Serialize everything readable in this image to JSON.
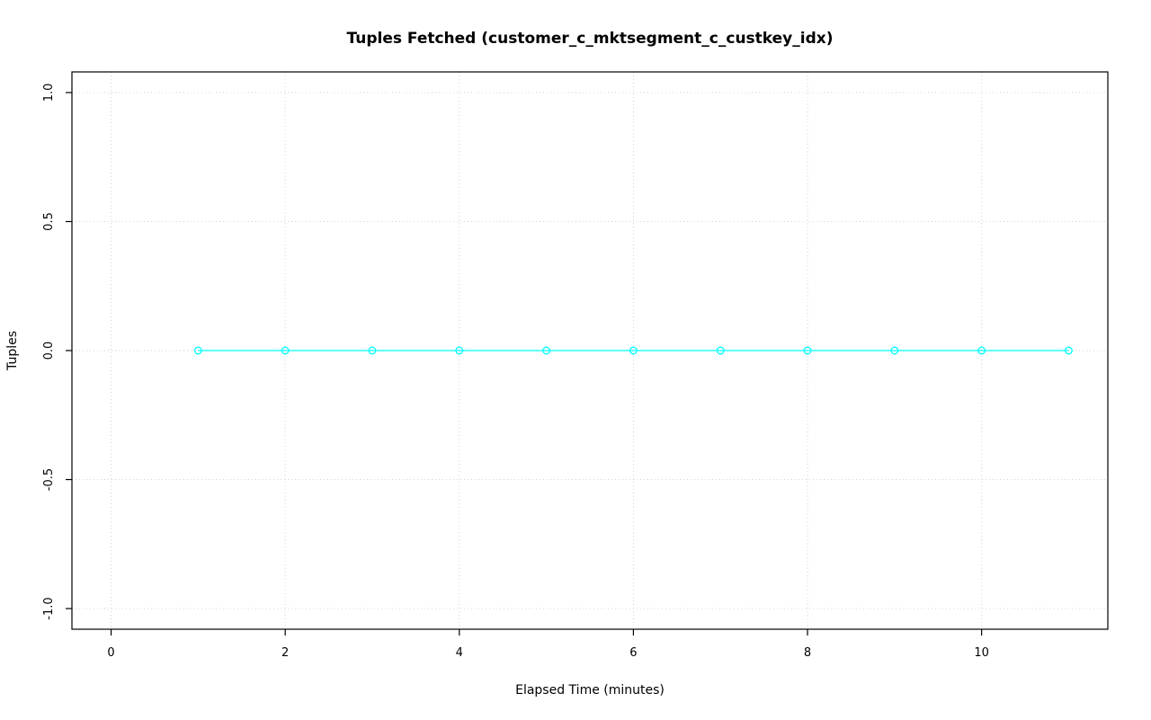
{
  "chart_data": {
    "type": "line",
    "title": "Tuples Fetched (customer_c_mktsegment_c_custkey_idx)",
    "xlabel": "Elapsed Time (minutes)",
    "ylabel": "Tuples",
    "x": [
      1,
      2,
      3,
      4,
      5,
      6,
      7,
      8,
      9,
      10,
      11
    ],
    "y": [
      0,
      0,
      0,
      0,
      0,
      0,
      0,
      0,
      0,
      0,
      0
    ],
    "xticks": [
      0,
      2,
      4,
      6,
      8,
      10
    ],
    "xtick_labels": [
      "0",
      "2",
      "4",
      "6",
      "8",
      "10"
    ],
    "yticks": [
      -1.0,
      -0.5,
      0.0,
      0.5,
      1.0
    ],
    "ytick_labels": [
      "-1.0",
      "-0.5",
      "0.0",
      "0.5",
      "1.0"
    ],
    "xlim": [
      -0.45,
      11.45
    ],
    "ylim": [
      -1.08,
      1.08
    ],
    "grid": true,
    "legend": "none",
    "marker": "open-circle",
    "series_color": "#00FFFF",
    "grid_color": "#D3D3D3",
    "axis_color": "#000000",
    "background_color": "#FFFFFF"
  }
}
